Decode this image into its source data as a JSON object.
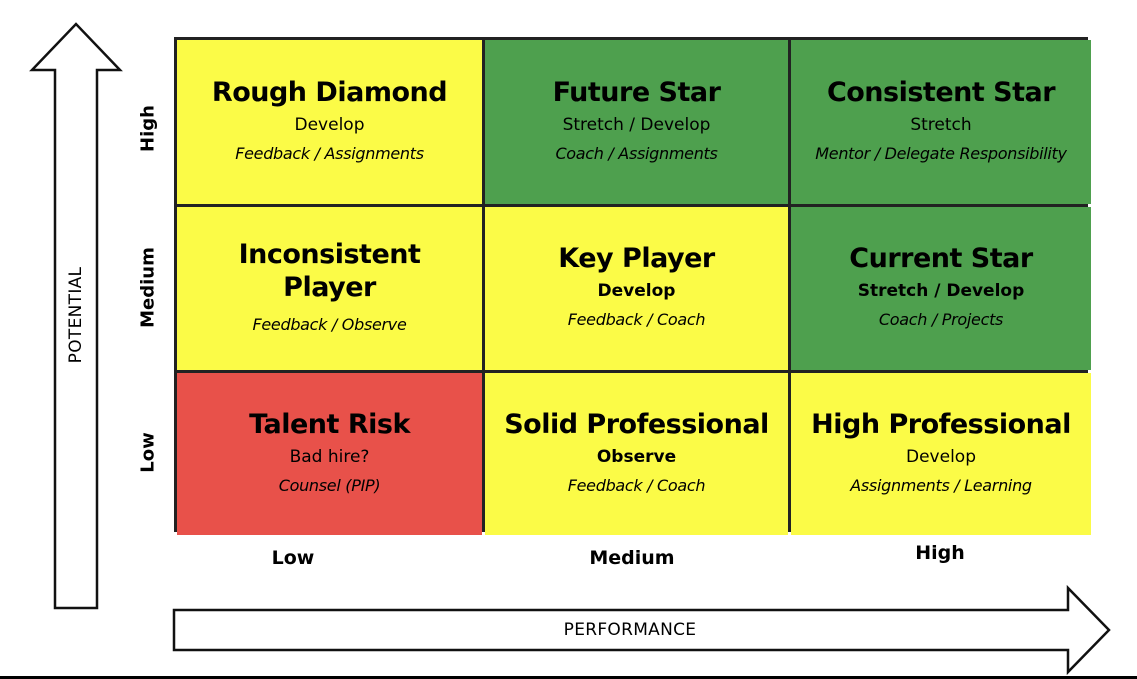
{
  "colors": {
    "yellow": "#fbfb47",
    "green": "#4ea04e",
    "red": "#e8514a",
    "border": "#222222"
  },
  "axes": {
    "vertical": {
      "title": "POTENTIAL",
      "levels": [
        "High",
        "Medium",
        "Low"
      ]
    },
    "horizontal": {
      "title": "PERFORMANCE",
      "levels": [
        "Low",
        "Medium",
        "High"
      ]
    }
  },
  "cells": [
    {
      "title": "Rough Diamond",
      "action": "Develop",
      "action_bold": false,
      "method": "Feedback / Assignments",
      "color": "#fbfb47"
    },
    {
      "title": "Future Star",
      "action": "Stretch / Develop",
      "action_bold": false,
      "method": "Coach / Assignments",
      "color": "#4ea04e"
    },
    {
      "title": "Consistent Star",
      "action": "Stretch",
      "action_bold": false,
      "method": "Mentor / Delegate Responsibility",
      "color": "#4ea04e"
    },
    {
      "title": "Inconsistent\nPlayer",
      "action": "",
      "action_bold": false,
      "method": "Feedback / Observe",
      "color": "#fbfb47"
    },
    {
      "title": "Key Player",
      "action": "Develop",
      "action_bold": true,
      "method": "Feedback / Coach",
      "color": "#fbfb47"
    },
    {
      "title": "Current Star",
      "action": "Stretch / Develop",
      "action_bold": true,
      "method": "Coach / Projects",
      "color": "#4ea04e"
    },
    {
      "title": "Talent Risk",
      "action": "Bad hire?",
      "action_bold": false,
      "method": "Counsel (PIP)",
      "color": "#e8514a"
    },
    {
      "title": "Solid Professional",
      "action": "Observe",
      "action_bold": true,
      "method": "Feedback / Coach",
      "color": "#fbfb47"
    },
    {
      "title": "High Professional",
      "action": "Develop",
      "action_bold": false,
      "method": "Assignments / Learning",
      "color": "#fbfb47"
    }
  ]
}
